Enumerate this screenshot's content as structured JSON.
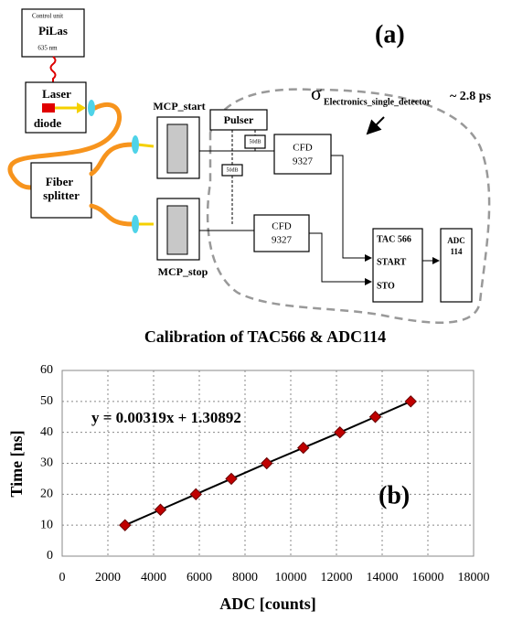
{
  "diagram": {
    "panel_label": "(a)",
    "pilas": {
      "control": "Control unit",
      "name": "PiLas",
      "wavelength": "635 nm"
    },
    "laser": [
      "Laser",
      "diode"
    ],
    "splitter": [
      "Fiber",
      "splitter"
    ],
    "mcp_start": "MCP_start",
    "mcp_stop": "MCP_stop",
    "pulser": "Pulser",
    "attenuators": [
      "50dB",
      "50dB"
    ],
    "cfd_top": [
      "CFD",
      "9327"
    ],
    "cfd_bottom": [
      "CFD",
      "9327"
    ],
    "tac": [
      "TAC 566",
      "START",
      "STO"
    ],
    "adc": [
      "ADC",
      "114"
    ],
    "sigma": {
      "symbol": "σ",
      "subscript": "Electronics_single_detector",
      "value": "~ 2.8 ps"
    }
  },
  "chart_data": {
    "type": "scatter",
    "title": "Calibration of TAC566 & ADC114",
    "x_label": "ADC [counts]",
    "y_label": "Time [ns]",
    "annotation": "y = 0.00319x + 1.30892",
    "panel_label": "(b)",
    "x": [
      2750,
      4300,
      5850,
      7400,
      8950,
      10550,
      12150,
      13700,
      15250
    ],
    "values": [
      10,
      15,
      20,
      25,
      30,
      35,
      40,
      45,
      50
    ],
    "color": "#c00000",
    "line_color": "#000000",
    "xlim": [
      0,
      18000
    ],
    "xticks": [
      0,
      2000,
      4000,
      6000,
      8000,
      10000,
      12000,
      14000,
      16000,
      18000
    ],
    "ylim": [
      0,
      60
    ],
    "yticks": [
      0,
      10,
      20,
      30,
      40,
      50,
      60
    ],
    "grid": true
  }
}
